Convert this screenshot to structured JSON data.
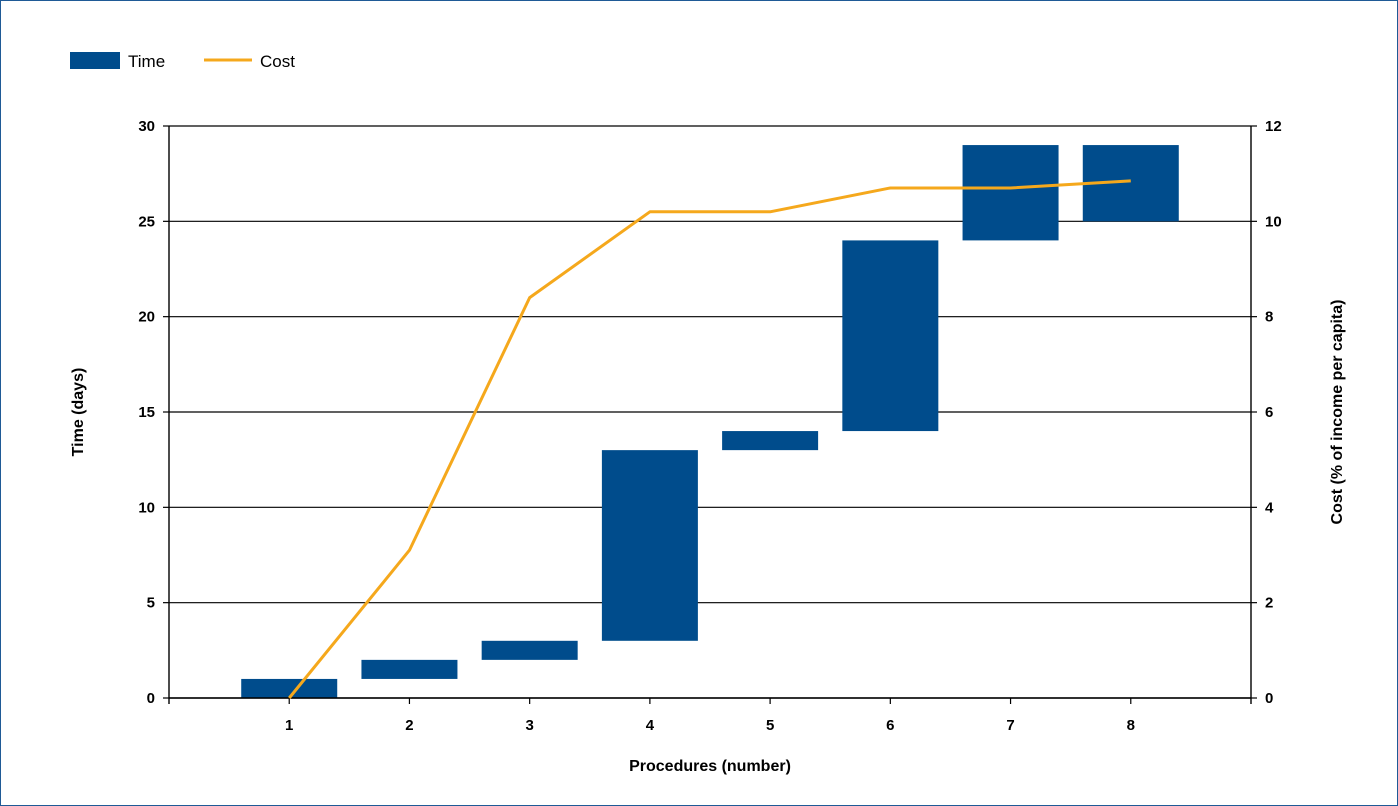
{
  "chart_data": {
    "type": "bar",
    "categories": [
      "1",
      "2",
      "3",
      "4",
      "5",
      "6",
      "7",
      "8"
    ],
    "series": [
      {
        "name": "Time",
        "kind": "floating-bar",
        "start": [
          0,
          1,
          2,
          3,
          13,
          14,
          24,
          25
        ],
        "end": [
          1,
          2,
          3,
          13,
          14,
          24,
          29,
          29
        ],
        "color": "#004c8c"
      },
      {
        "name": "Cost",
        "kind": "line",
        "axis": "right",
        "values": [
          0,
          3.1,
          8.4,
          10.2,
          10.2,
          10.7,
          10.7,
          10.85
        ],
        "color": "#f5a81c"
      }
    ],
    "xlabel": "Procedures (number)",
    "ylabel": "Time (days)",
    "y2label": "Cost (% of income per capita)",
    "ylim": [
      0,
      30
    ],
    "y2lim": [
      0,
      12
    ],
    "yticks": [
      "0",
      "5",
      "10",
      "15",
      "20",
      "25",
      "30"
    ],
    "y2ticks": [
      "0",
      "2",
      "4",
      "6",
      "8",
      "10",
      "12"
    ],
    "grid": true,
    "legend": "top-left"
  }
}
